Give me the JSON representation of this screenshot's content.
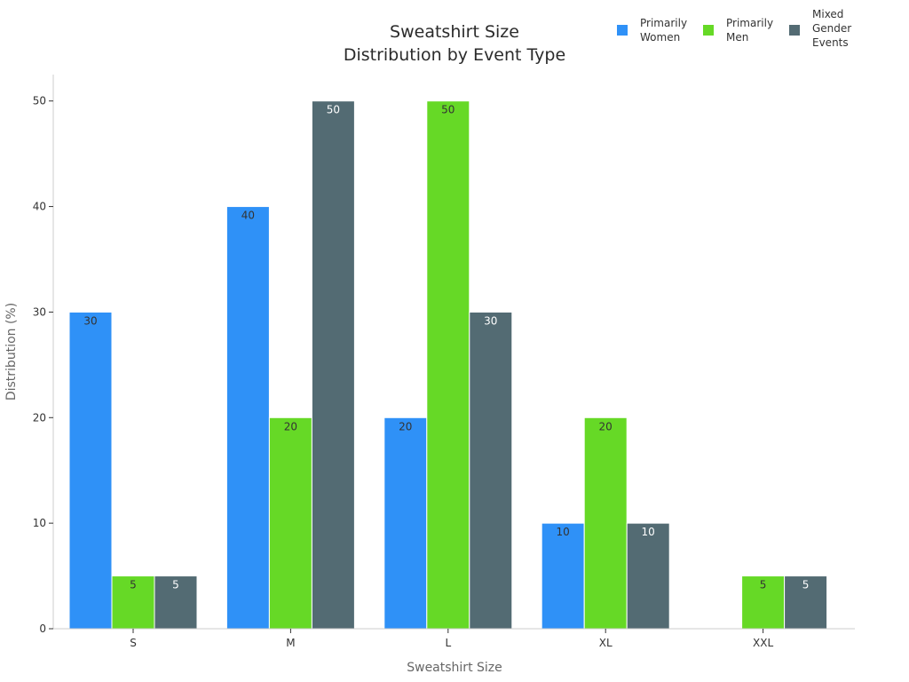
{
  "chart_data": {
    "type": "bar",
    "title": [
      "Sweatshirt Size",
      "Distribution by Event Type"
    ],
    "xlabel": "Sweatshirt Size",
    "ylabel": "Distribution (%)",
    "categories": [
      "S",
      "M",
      "L",
      "XL",
      "XXL"
    ],
    "ylim": [
      0,
      52.5
    ],
    "yticks": [
      0,
      10,
      20,
      30,
      40,
      50
    ],
    "grid": false,
    "legend_position": "top-right",
    "series": [
      {
        "name": [
          "Primarily",
          "Women"
        ],
        "color": "#2f91f7",
        "label_color": "#333333",
        "values": [
          30,
          40,
          20,
          10,
          0
        ]
      },
      {
        "name": [
          "Primarily",
          "Men"
        ],
        "color": "#66d926",
        "label_color": "#333333",
        "values": [
          5,
          20,
          50,
          20,
          5
        ]
      },
      {
        "name": [
          "Mixed",
          "Gender",
          "Events"
        ],
        "color": "#536b73",
        "label_color": "#ffffff",
        "values": [
          5,
          50,
          30,
          10,
          5
        ]
      }
    ]
  }
}
